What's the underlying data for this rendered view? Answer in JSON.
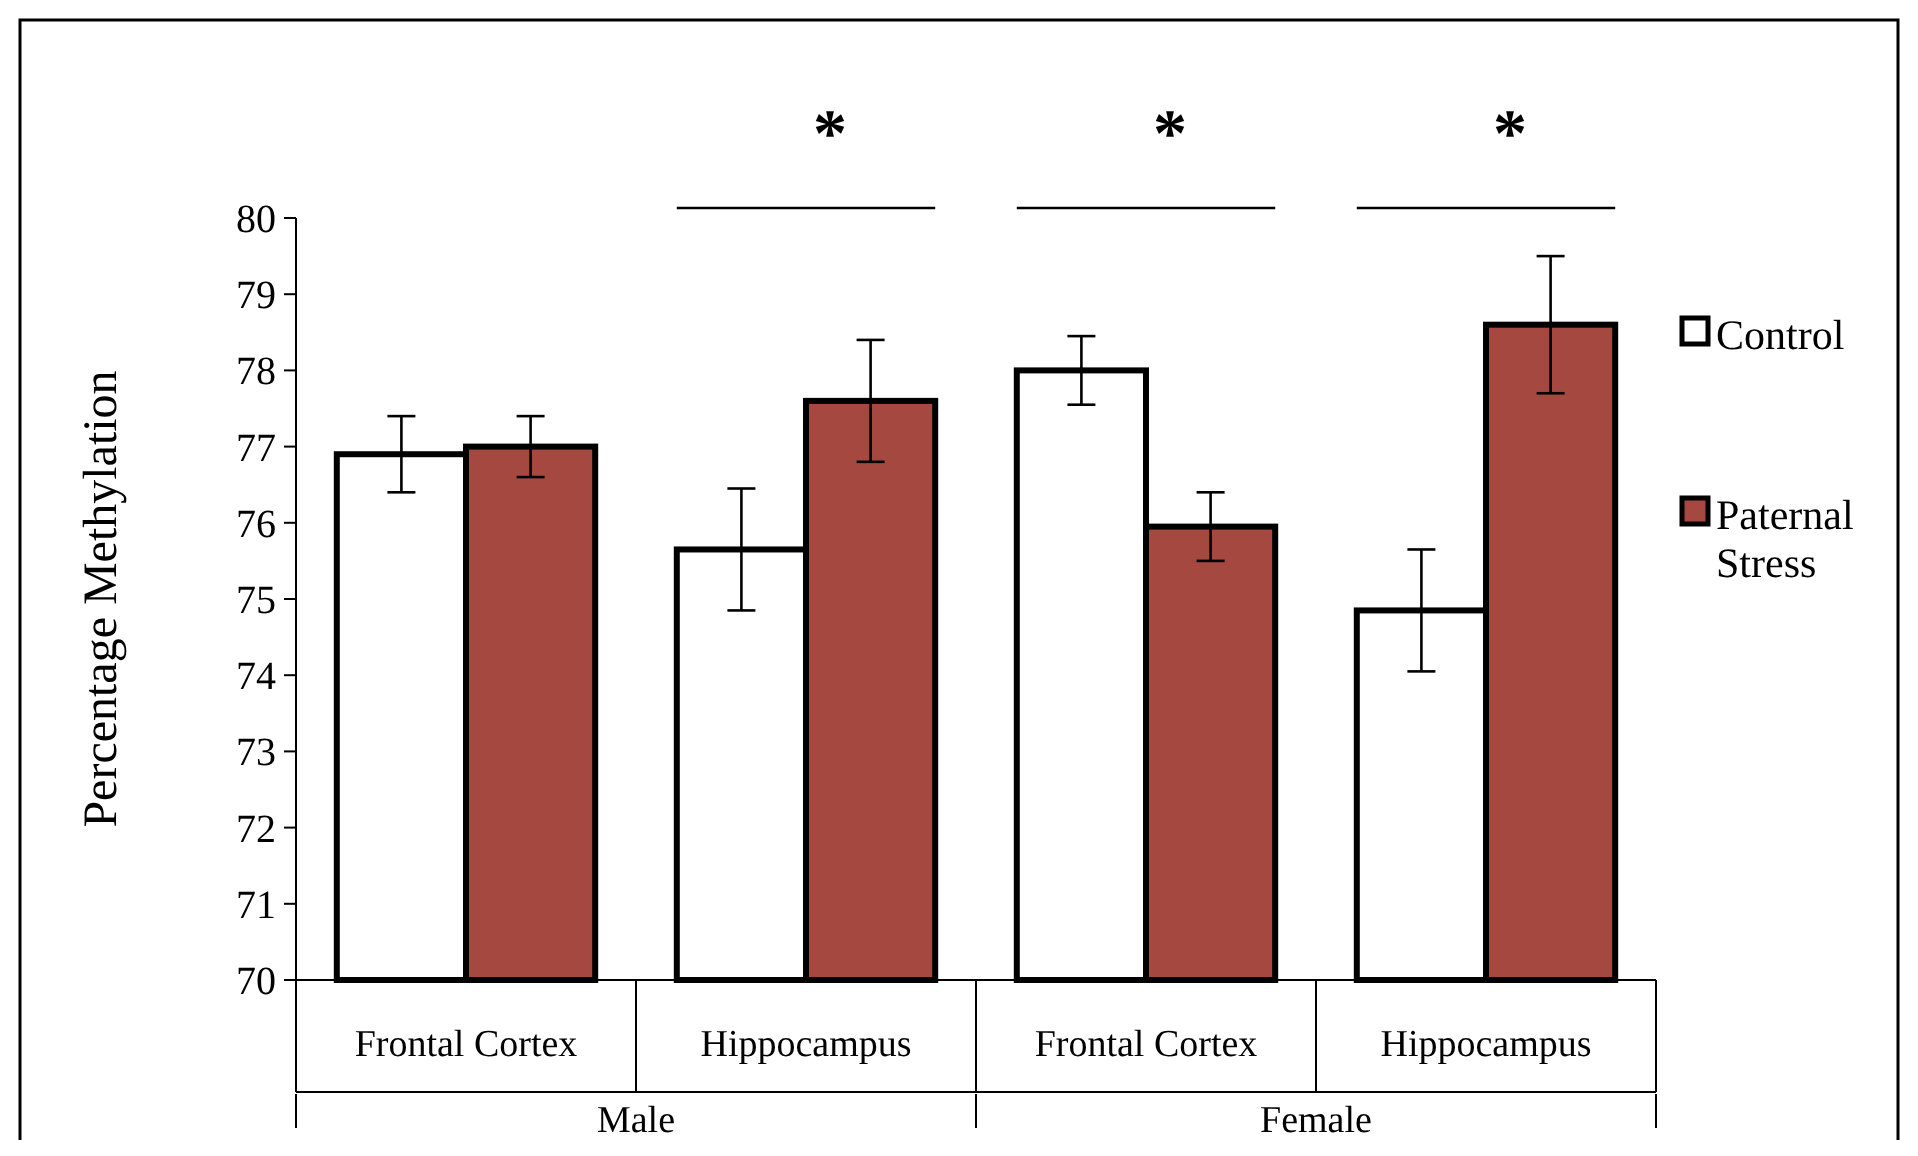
{
  "chart_data": {
    "type": "bar",
    "ylabel": "Percentage Methylation",
    "categories": [
      "Frontal Cortex",
      "Hippocampus",
      "Frontal Cortex",
      "Hippocampus"
    ],
    "series": [
      {
        "name": "Control",
        "color": "#ffffff",
        "values": [
          76.9,
          75.65,
          78.0,
          74.85
        ],
        "errors": [
          0.5,
          0.8,
          0.45,
          0.8
        ]
      },
      {
        "name": "Paternal Stress",
        "color": "#a5483f",
        "values": [
          77.0,
          77.6,
          75.95,
          78.6
        ],
        "errors": [
          0.4,
          0.8,
          0.45,
          0.9
        ]
      }
    ],
    "ylim": [
      70,
      80
    ],
    "yticks": [
      70,
      71,
      72,
      73,
      74,
      75,
      76,
      77,
      78,
      79,
      80
    ],
    "grid": false,
    "legend": "right",
    "annotations": [
      {
        "text": "Male"
      },
      {
        "text": "Female"
      },
      {
        "text": "*"
      },
      {
        "text": "*"
      },
      {
        "text": "*"
      }
    ]
  }
}
